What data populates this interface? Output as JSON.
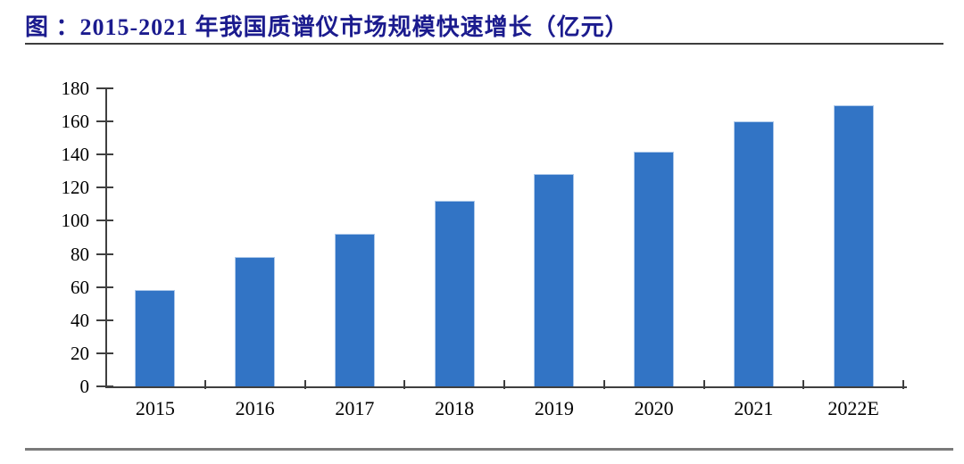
{
  "figure": {
    "title": "图 ：2015-2021 年我国质谱仪市场规模快速增长（亿元）"
  },
  "chart_data": {
    "type": "bar",
    "title": "2015-2021 年我国质谱仪市场规模快速增长（亿元）",
    "unit": "亿元",
    "categories": [
      "2015",
      "2016",
      "2017",
      "2018",
      "2019",
      "2020",
      "2021",
      "2022E"
    ],
    "values": [
      58,
      78,
      92,
      112,
      128,
      142,
      160,
      170
    ],
    "ylim": [
      0,
      180
    ],
    "ytick_step": 20,
    "yticks": [
      0,
      20,
      40,
      60,
      80,
      100,
      120,
      140,
      160,
      180
    ],
    "grid": false,
    "legend": "none",
    "colors": {
      "bar_fill": "#3274C5",
      "bar_border": "#AEC9EA",
      "axis": "#3f3f3f",
      "text": "#000000",
      "title": "#1b1b8e",
      "title_rule": "#3d3d3d",
      "divider": "#7a7a7a"
    }
  }
}
